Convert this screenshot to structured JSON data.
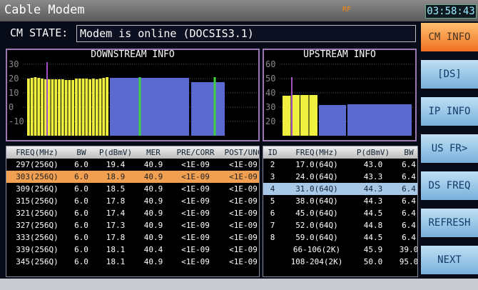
{
  "header": {
    "title": "Cable Modem",
    "time": "03:58:43",
    "status_icons": [
      "RF"
    ]
  },
  "cm_state": {
    "label": "CM STATE:",
    "value": "Modem is online (DOCSIS3.1)"
  },
  "downstream_chart": {
    "title": "DOWNSTREAM INFO",
    "ylim": [
      -20,
      33
    ],
    "yticks": [
      30,
      20,
      10,
      0,
      -10
    ],
    "narrow_values": [
      20,
      20.5,
      21,
      20.5,
      20,
      19.5,
      19.5,
      19.5,
      19.5,
      19.5,
      19.5,
      19,
      19,
      19,
      20,
      20,
      20,
      20,
      19.5,
      20,
      19.5,
      20,
      20.5,
      21
    ],
    "wide_values": [
      20.5,
      20.5,
      17.5
    ]
  },
  "upstream_chart": {
    "title": "UPSTREAM INFO",
    "ylim": [
      10,
      63
    ],
    "yticks": [
      60,
      50,
      40,
      30,
      20
    ],
    "narrow_values": [
      38,
      38.5,
      38.5,
      38.5
    ],
    "wide_values": [
      31.5,
      32
    ]
  },
  "downstream_table": {
    "columns": [
      "FREQ(MHz)",
      "BW",
      "P(dBmV)",
      "MER",
      "PRE/CORR",
      "POST/UNC"
    ],
    "rows": [
      [
        "297(256Q)",
        "6.0",
        "19.4",
        "40.9",
        "<1E-09",
        "<1E-09"
      ],
      [
        "303(256Q)",
        "6.0",
        "18.9",
        "40.9",
        "<1E-09",
        "<1E-09"
      ],
      [
        "309(256Q)",
        "6.0",
        "18.5",
        "40.9",
        "<1E-09",
        "<1E-09"
      ],
      [
        "315(256Q)",
        "6.0",
        "17.8",
        "40.9",
        "<1E-09",
        "<1E-09"
      ],
      [
        "321(256Q)",
        "6.0",
        "17.4",
        "40.9",
        "<1E-09",
        "<1E-09"
      ],
      [
        "327(256Q)",
        "6.0",
        "17.3",
        "40.9",
        "<1E-09",
        "<1E-09"
      ],
      [
        "333(256Q)",
        "6.0",
        "17.8",
        "40.9",
        "<1E-09",
        "<1E-09"
      ],
      [
        "339(256Q)",
        "6.0",
        "18.1",
        "40.4",
        "<1E-09",
        "<1E-09"
      ],
      [
        "345(256Q)",
        "6.0",
        "18.1",
        "40.9",
        "<1E-09",
        "<1E-09"
      ]
    ],
    "selected": 1
  },
  "upstream_table": {
    "columns": [
      "ID",
      "FREQ(MHz)",
      "P(dBmV)",
      "BW"
    ],
    "rows": [
      [
        "2",
        "17.0(64Q)",
        "43.0",
        "6.4"
      ],
      [
        "3",
        "24.0(64Q)",
        "43.3",
        "6.4"
      ],
      [
        "4",
        "31.0(64Q)",
        "44.3",
        "6.4"
      ],
      [
        "5",
        "38.0(64Q)",
        "44.3",
        "6.4"
      ],
      [
        "6",
        "45.0(64Q)",
        "44.5",
        "6.4"
      ],
      [
        "7",
        "52.0(64Q)",
        "44.8",
        "6.4"
      ],
      [
        "8",
        "59.0(64Q)",
        "44.5",
        "6.4"
      ],
      [
        null,
        "66-106(2K)",
        "45.9",
        "39.0"
      ],
      [
        null,
        "108-204(2K)",
        "50.0",
        "95.0"
      ]
    ],
    "selected": 2
  },
  "menu": [
    "CM INFO",
    "[DS]",
    "IP INFO",
    "US FR>",
    "DS FREQ",
    "REFRESH",
    "NEXT"
  ],
  "menu_active": 0
}
